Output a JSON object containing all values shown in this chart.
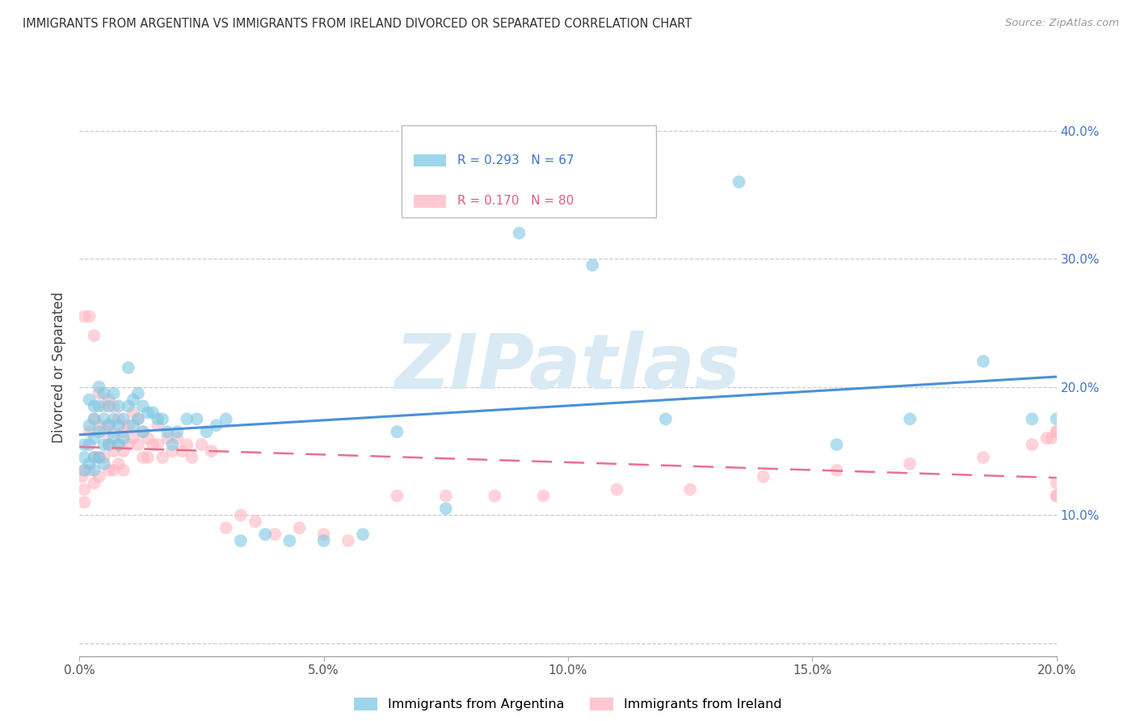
{
  "title": "IMMIGRANTS FROM ARGENTINA VS IMMIGRANTS FROM IRELAND DIVORCED OR SEPARATED CORRELATION CHART",
  "source": "Source: ZipAtlas.com",
  "ylabel": "Divorced or Separated",
  "xlim": [
    0.0,
    0.2
  ],
  "ylim": [
    -0.01,
    0.44
  ],
  "xticks": [
    0.0,
    0.05,
    0.1,
    0.15,
    0.2
  ],
  "yticks": [
    0.0,
    0.1,
    0.2,
    0.3,
    0.4
  ],
  "xtick_labels": [
    "0.0%",
    "5.0%",
    "10.0%",
    "15.0%",
    "20.0%"
  ],
  "ytick_labels_right": [
    "",
    "10.0%",
    "20.0%",
    "30.0%",
    "40.0%"
  ],
  "argentina_R": 0.293,
  "argentina_N": 67,
  "ireland_R": 0.17,
  "ireland_N": 80,
  "argentina_color": "#7ec8e3",
  "ireland_color": "#ffb6c1",
  "trend_argentina_color": "#4a90d9",
  "trend_ireland_color": "#e87090",
  "watermark_color": "#daeaf5",
  "argentina_x": [
    0.001,
    0.001,
    0.001,
    0.002,
    0.002,
    0.002,
    0.002,
    0.003,
    0.003,
    0.003,
    0.003,
    0.003,
    0.004,
    0.004,
    0.004,
    0.004,
    0.005,
    0.005,
    0.005,
    0.005,
    0.006,
    0.006,
    0.006,
    0.007,
    0.007,
    0.007,
    0.008,
    0.008,
    0.008,
    0.009,
    0.009,
    0.01,
    0.01,
    0.011,
    0.011,
    0.012,
    0.012,
    0.013,
    0.013,
    0.014,
    0.015,
    0.016,
    0.017,
    0.018,
    0.019,
    0.02,
    0.022,
    0.024,
    0.026,
    0.028,
    0.03,
    0.033,
    0.038,
    0.043,
    0.05,
    0.058,
    0.065,
    0.075,
    0.09,
    0.105,
    0.12,
    0.135,
    0.155,
    0.17,
    0.185,
    0.195,
    0.2
  ],
  "argentina_y": [
    0.145,
    0.155,
    0.135,
    0.19,
    0.17,
    0.155,
    0.14,
    0.185,
    0.175,
    0.16,
    0.145,
    0.135,
    0.2,
    0.185,
    0.165,
    0.145,
    0.195,
    0.175,
    0.155,
    0.14,
    0.185,
    0.17,
    0.155,
    0.195,
    0.175,
    0.16,
    0.185,
    0.17,
    0.155,
    0.175,
    0.16,
    0.215,
    0.185,
    0.19,
    0.17,
    0.195,
    0.175,
    0.185,
    0.165,
    0.18,
    0.18,
    0.175,
    0.175,
    0.165,
    0.155,
    0.165,
    0.175,
    0.175,
    0.165,
    0.17,
    0.175,
    0.08,
    0.085,
    0.08,
    0.08,
    0.085,
    0.165,
    0.105,
    0.32,
    0.295,
    0.175,
    0.36,
    0.155,
    0.175,
    0.22,
    0.175,
    0.175
  ],
  "ireland_x": [
    0.0005,
    0.001,
    0.001,
    0.001,
    0.001,
    0.002,
    0.002,
    0.002,
    0.003,
    0.003,
    0.003,
    0.003,
    0.004,
    0.004,
    0.004,
    0.004,
    0.005,
    0.005,
    0.005,
    0.006,
    0.006,
    0.006,
    0.006,
    0.007,
    0.007,
    0.007,
    0.007,
    0.008,
    0.008,
    0.008,
    0.009,
    0.009,
    0.009,
    0.01,
    0.01,
    0.011,
    0.011,
    0.012,
    0.012,
    0.013,
    0.013,
    0.014,
    0.014,
    0.015,
    0.016,
    0.016,
    0.017,
    0.018,
    0.019,
    0.02,
    0.021,
    0.022,
    0.023,
    0.025,
    0.027,
    0.03,
    0.033,
    0.036,
    0.04,
    0.045,
    0.05,
    0.055,
    0.065,
    0.075,
    0.085,
    0.095,
    0.11,
    0.125,
    0.14,
    0.155,
    0.17,
    0.185,
    0.195,
    0.198,
    0.199,
    0.2,
    0.2,
    0.2,
    0.2,
    0.2
  ],
  "ireland_y": [
    0.13,
    0.255,
    0.135,
    0.12,
    0.11,
    0.255,
    0.165,
    0.135,
    0.24,
    0.175,
    0.145,
    0.125,
    0.195,
    0.17,
    0.145,
    0.13,
    0.185,
    0.165,
    0.145,
    0.19,
    0.17,
    0.155,
    0.135,
    0.185,
    0.165,
    0.15,
    0.135,
    0.175,
    0.155,
    0.14,
    0.165,
    0.15,
    0.135,
    0.17,
    0.155,
    0.18,
    0.16,
    0.175,
    0.155,
    0.165,
    0.145,
    0.16,
    0.145,
    0.155,
    0.17,
    0.155,
    0.145,
    0.16,
    0.15,
    0.16,
    0.15,
    0.155,
    0.145,
    0.155,
    0.15,
    0.09,
    0.1,
    0.095,
    0.085,
    0.09,
    0.085,
    0.08,
    0.115,
    0.115,
    0.115,
    0.115,
    0.12,
    0.12,
    0.13,
    0.135,
    0.14,
    0.145,
    0.155,
    0.16,
    0.16,
    0.165,
    0.165,
    0.115,
    0.115,
    0.125
  ]
}
